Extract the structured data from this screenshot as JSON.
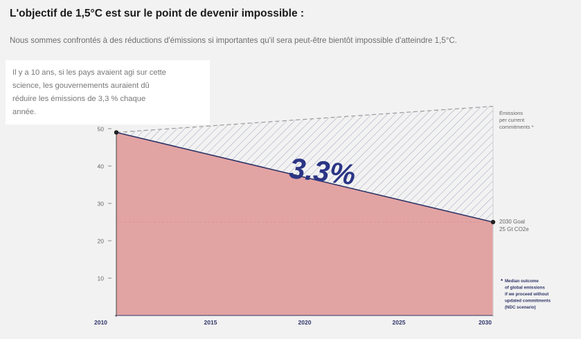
{
  "header": {
    "title": "L'objectif de 1,5°C est sur le point de devenir impossible :",
    "subtitle": "Nous sommes confrontés à des réductions d'émissions si importantes qu'il sera peut-être bientôt impossible d'atteindre 1,5°C."
  },
  "note": {
    "lines": [
      "Il y a 10 ans, si les pays avaient agi sur cette",
      "science, les gouvernements auraient dû",
      "réduire les émissions de 3,3 % chaque",
      "année."
    ]
  },
  "colors": {
    "background": "#f2f2f2",
    "fill": "#e2a3a3",
    "line": "#2f3567",
    "hatch": "#9ea2bb",
    "percent": "#2b3585"
  },
  "chart_data": {
    "type": "area",
    "x": [
      2010,
      2030
    ],
    "xticks": [
      "2010",
      "2015",
      "2020",
      "2025",
      "2030"
    ],
    "yticks": [
      "10",
      "20",
      "30",
      "40",
      "50"
    ],
    "ylim": [
      0,
      52
    ],
    "xlim": [
      2010,
      2030
    ],
    "series": [
      {
        "values": [
          49,
          25
        ]
      },
      {
        "name": "Émissions per current commitments *",
        "values": [
          49,
          56
        ]
      }
    ],
    "reference_line": 25,
    "annotation": "3.3%",
    "goal_label": [
      "2030 Goal",
      "25 Gt CO2e"
    ],
    "emissions_label": [
      "Émissions",
      "per current",
      "commitments *"
    ],
    "footnote": [
      "*",
      "Median outcome",
      "of global emissions",
      "if we proceed without",
      "updated commitments",
      "(NDC scenario)"
    ],
    "grid": false,
    "legend": "none"
  }
}
